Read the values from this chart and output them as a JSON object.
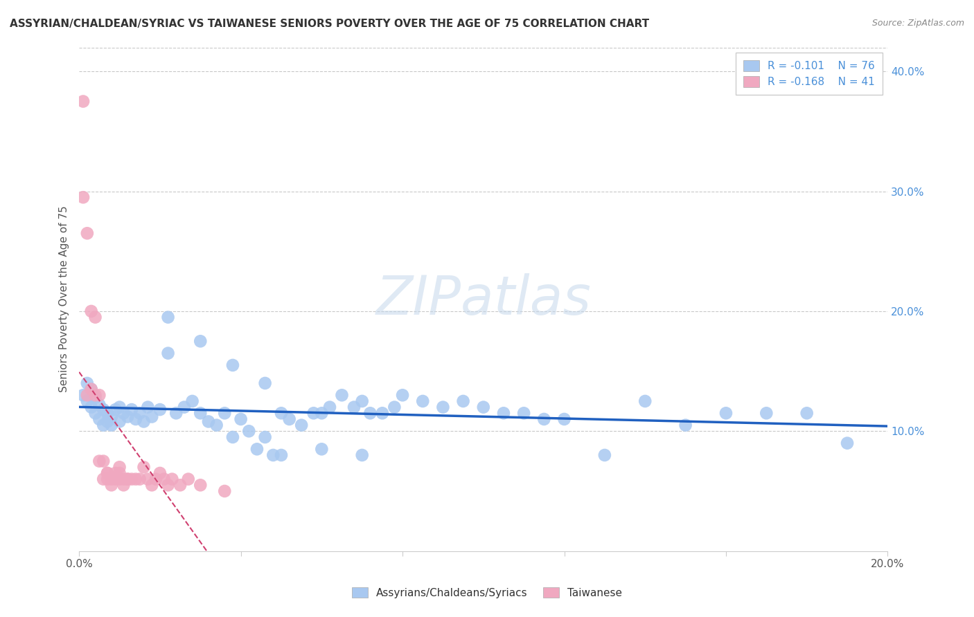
{
  "title": "ASSYRIAN/CHALDEAN/SYRIAC VS TAIWANESE SENIORS POVERTY OVER THE AGE OF 75 CORRELATION CHART",
  "source": "Source: ZipAtlas.com",
  "ylabel": "Seniors Poverty Over the Age of 75",
  "xlim": [
    0.0,
    0.2
  ],
  "ylim": [
    0.0,
    0.42
  ],
  "xticks": [
    0.0,
    0.04,
    0.08,
    0.12,
    0.16,
    0.2
  ],
  "xtick_labels": [
    "0.0%",
    "",
    "",
    "",
    "",
    "20.0%"
  ],
  "yticks_right": [
    0.1,
    0.2,
    0.3,
    0.4
  ],
  "ytick_labels_right": [
    "10.0%",
    "20.0%",
    "30.0%",
    "40.0%"
  ],
  "background_color": "#ffffff",
  "grid_color": "#c8c8c8",
  "watermark": "ZIPatlas",
  "assyrian_color": "#a8c8f0",
  "taiwanese_color": "#f0a8c0",
  "assyrian_line_color": "#2060c0",
  "taiwanese_line_color": "#d04070",
  "legend_R_assyrian": "R = -0.101",
  "legend_N_assyrian": "N = 76",
  "legend_R_taiwanese": "R = -0.168",
  "legend_N_taiwanese": "N = 41",
  "assyrian_x": [
    0.001,
    0.002,
    0.002,
    0.003,
    0.003,
    0.004,
    0.004,
    0.005,
    0.005,
    0.006,
    0.006,
    0.007,
    0.007,
    0.008,
    0.008,
    0.009,
    0.01,
    0.01,
    0.011,
    0.012,
    0.013,
    0.014,
    0.015,
    0.016,
    0.017,
    0.018,
    0.02,
    0.022,
    0.024,
    0.026,
    0.028,
    0.03,
    0.032,
    0.034,
    0.036,
    0.038,
    0.04,
    0.042,
    0.044,
    0.046,
    0.048,
    0.05,
    0.052,
    0.055,
    0.058,
    0.06,
    0.062,
    0.065,
    0.068,
    0.07,
    0.072,
    0.075,
    0.078,
    0.08,
    0.085,
    0.09,
    0.095,
    0.1,
    0.105,
    0.11,
    0.115,
    0.12,
    0.13,
    0.14,
    0.15,
    0.16,
    0.17,
    0.18,
    0.19,
    0.022,
    0.03,
    0.038,
    0.046,
    0.05,
    0.06,
    0.07
  ],
  "assyrian_y": [
    0.13,
    0.125,
    0.14,
    0.135,
    0.12,
    0.128,
    0.115,
    0.122,
    0.11,
    0.118,
    0.105,
    0.115,
    0.108,
    0.112,
    0.105,
    0.118,
    0.12,
    0.108,
    0.115,
    0.112,
    0.118,
    0.11,
    0.115,
    0.108,
    0.12,
    0.112,
    0.118,
    0.195,
    0.115,
    0.12,
    0.125,
    0.115,
    0.108,
    0.105,
    0.115,
    0.095,
    0.11,
    0.1,
    0.085,
    0.095,
    0.08,
    0.115,
    0.11,
    0.105,
    0.115,
    0.115,
    0.12,
    0.13,
    0.12,
    0.125,
    0.115,
    0.115,
    0.12,
    0.13,
    0.125,
    0.12,
    0.125,
    0.12,
    0.115,
    0.115,
    0.11,
    0.11,
    0.08,
    0.125,
    0.105,
    0.115,
    0.115,
    0.115,
    0.09,
    0.165,
    0.175,
    0.155,
    0.14,
    0.08,
    0.085,
    0.08
  ],
  "taiwanese_x": [
    0.001,
    0.001,
    0.002,
    0.002,
    0.003,
    0.003,
    0.004,
    0.004,
    0.005,
    0.005,
    0.006,
    0.006,
    0.007,
    0.007,
    0.007,
    0.008,
    0.008,
    0.009,
    0.009,
    0.01,
    0.01,
    0.01,
    0.011,
    0.011,
    0.012,
    0.012,
    0.013,
    0.014,
    0.015,
    0.016,
    0.017,
    0.018,
    0.019,
    0.02,
    0.021,
    0.022,
    0.023,
    0.025,
    0.027,
    0.03,
    0.036
  ],
  "taiwanese_y": [
    0.375,
    0.295,
    0.265,
    0.13,
    0.2,
    0.135,
    0.195,
    0.13,
    0.13,
    0.075,
    0.075,
    0.06,
    0.065,
    0.065,
    0.06,
    0.06,
    0.055,
    0.065,
    0.06,
    0.07,
    0.065,
    0.06,
    0.06,
    0.055,
    0.06,
    0.06,
    0.06,
    0.06,
    0.06,
    0.07,
    0.06,
    0.055,
    0.06,
    0.065,
    0.06,
    0.055,
    0.06,
    0.055,
    0.06,
    0.055,
    0.05
  ]
}
